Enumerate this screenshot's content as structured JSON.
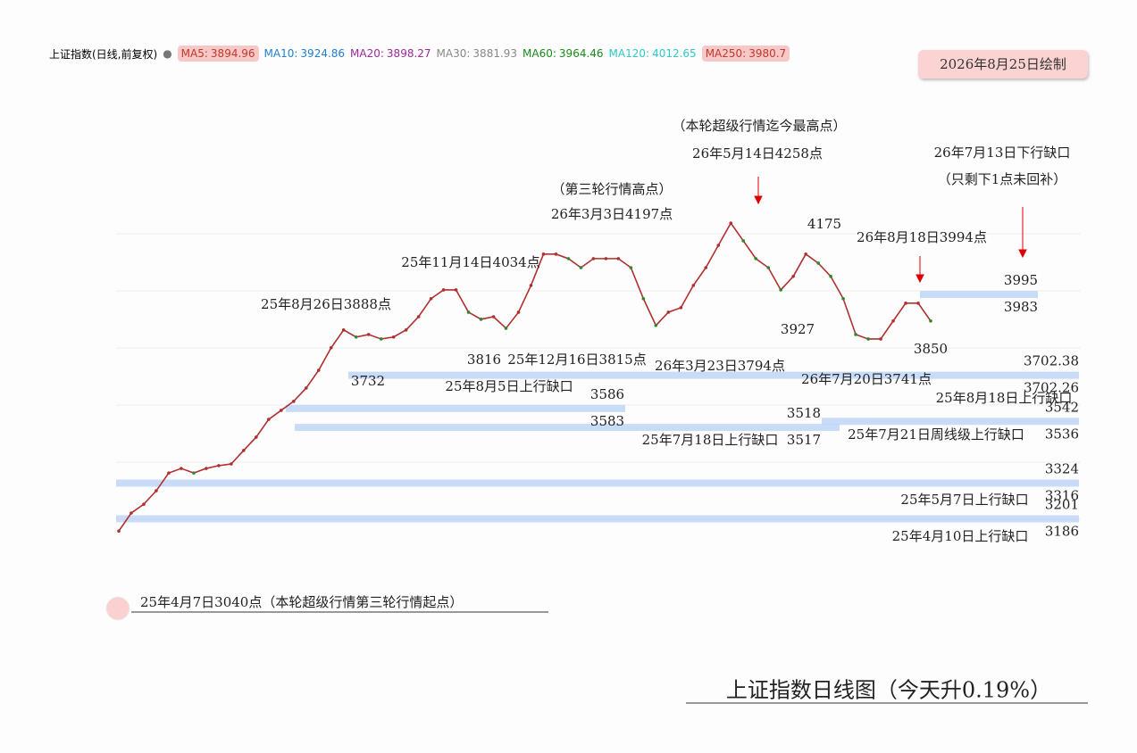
{
  "header": {
    "index_name": "上证指数(日线,前复权)",
    "date_stamp": "2026年8月25日绘制"
  },
  "chart_data": {
    "type": "line",
    "title": "上证指数日线图（今天升0.19%）",
    "color": "#b03030",
    "ylim": [
      3040,
      4258
    ],
    "legend": [
      {
        "label": "MA5:",
        "value": 3894.96,
        "color": "#c0392b",
        "highlight": true
      },
      {
        "label": "MA10:",
        "value": 3924.86,
        "color": "#1e7fd0",
        "highlight": false
      },
      {
        "label": "MA20:",
        "value": 3898.27,
        "color": "#9b2a9b",
        "highlight": false
      },
      {
        "label": "MA30:",
        "value": 3881.93,
        "color": "#888888",
        "highlight": false
      },
      {
        "label": "MA60:",
        "value": 3964.46,
        "color": "#1a8a1a",
        "highlight": false
      },
      {
        "label": "MA120:",
        "value": 4012.65,
        "color": "#30c8c8",
        "highlight": false
      },
      {
        "label": "MA250:",
        "value": 3980.7,
        "color": "#c0392b",
        "highlight": true
      }
    ],
    "values": [
      3150,
      3214,
      3245,
      3293,
      3356,
      3372,
      3356,
      3372,
      3382,
      3388,
      3436,
      3483,
      3546,
      3578,
      3610,
      3657,
      3720,
      3800,
      3863,
      3838,
      3847,
      3831,
      3838,
      3863,
      3910,
      3974,
      4005,
      4005,
      3926,
      3901,
      3910,
      3869,
      3926,
      4021,
      4132,
      4132,
      4116,
      4084,
      4116,
      4116,
      4116,
      4084,
      3974,
      3879,
      3926,
      3942,
      4021,
      4084,
      4163,
      4242,
      4179,
      4116,
      4084,
      4005,
      4053,
      4132,
      4100,
      4053,
      3974,
      3847,
      3831,
      3831,
      3895,
      3958,
      3958,
      3895
    ],
    "bands": [
      {
        "hi": 3995,
        "lo": 3983
      },
      {
        "hi": 3702.38,
        "lo": 3702.26
      },
      {
        "hi": 3586,
        "lo": 3583
      },
      {
        "hi": 3542,
        "lo": 3536
      },
      {
        "hi": 3518,
        "lo": 3517
      },
      {
        "hi": 3324,
        "lo": 3316
      },
      {
        "hi": 3201,
        "lo": 3186
      }
    ],
    "price_labels": [
      3732,
      3816,
      4175,
      3927,
      3850
    ],
    "annotations": [
      "（本轮超级行情迄今最高点）",
      "26年5月14日4258点",
      "（第三轮行情高点）",
      "26年3月3日4197点",
      "25年11月14日4034点",
      "25年8月26日3888点",
      "26年7月13日下行缺口",
      "（只剩下1点未回补）",
      "26年8月18日3994点",
      "25年12月16日3815点",
      "26年3月23日3794点",
      "26年7月20日3741点",
      "25年8月5日上行缺口",
      "25年8月18日上行缺口",
      "25年7月18日上行缺口",
      "25年7月21日周线级上行缺口",
      "25年5月7日上行缺口",
      "25年4月10日上行缺口",
      "25年4月7日3040点（本轮超级行情第三轮行情起点）"
    ]
  }
}
